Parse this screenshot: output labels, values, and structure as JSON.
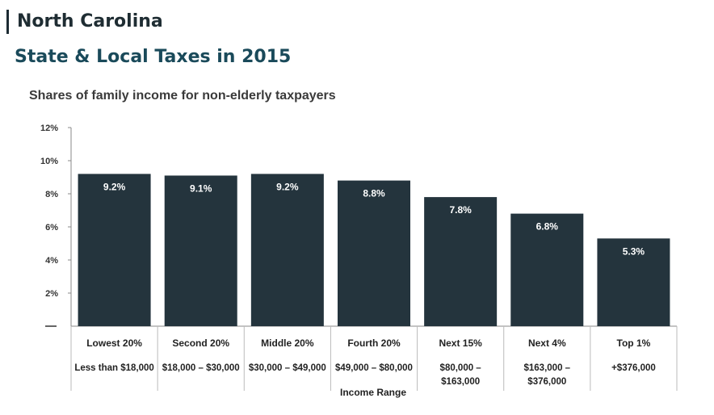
{
  "header": {
    "state_name": "North Carolina",
    "report_title": "State & Local Taxes in 2015"
  },
  "chart_data": {
    "type": "bar",
    "title": "Shares of family income for non-elderly taxpayers",
    "xlabel": "Income Range",
    "ylabel": "",
    "ylim": [
      0,
      12
    ],
    "yticks": [
      "2%",
      "4%",
      "6%",
      "8%",
      "10%",
      "12%"
    ],
    "categories": [
      "Lowest 20%",
      "Second 20%",
      "Middle 20%",
      "Fourth 20%",
      "Next 15%",
      "Next 4%",
      "Top 1%"
    ],
    "ranges": [
      [
        "Less than $18,000"
      ],
      [
        "$18,000 – $30,000"
      ],
      [
        "$30,000 – $49,000"
      ],
      [
        "$49,000 – $80,000"
      ],
      [
        "$80,000 –",
        "$163,000"
      ],
      [
        "$163,000 –",
        "$376,000"
      ],
      [
        "+$376,000"
      ]
    ],
    "values": [
      9.2,
      9.1,
      9.2,
      8.8,
      7.8,
      6.8,
      5.3
    ],
    "value_labels": [
      "9.2%",
      "9.1%",
      "9.2%",
      "8.8%",
      "7.8%",
      "6.8%",
      "5.3%"
    ],
    "bar_color": "#24343d",
    "grid": false
  }
}
